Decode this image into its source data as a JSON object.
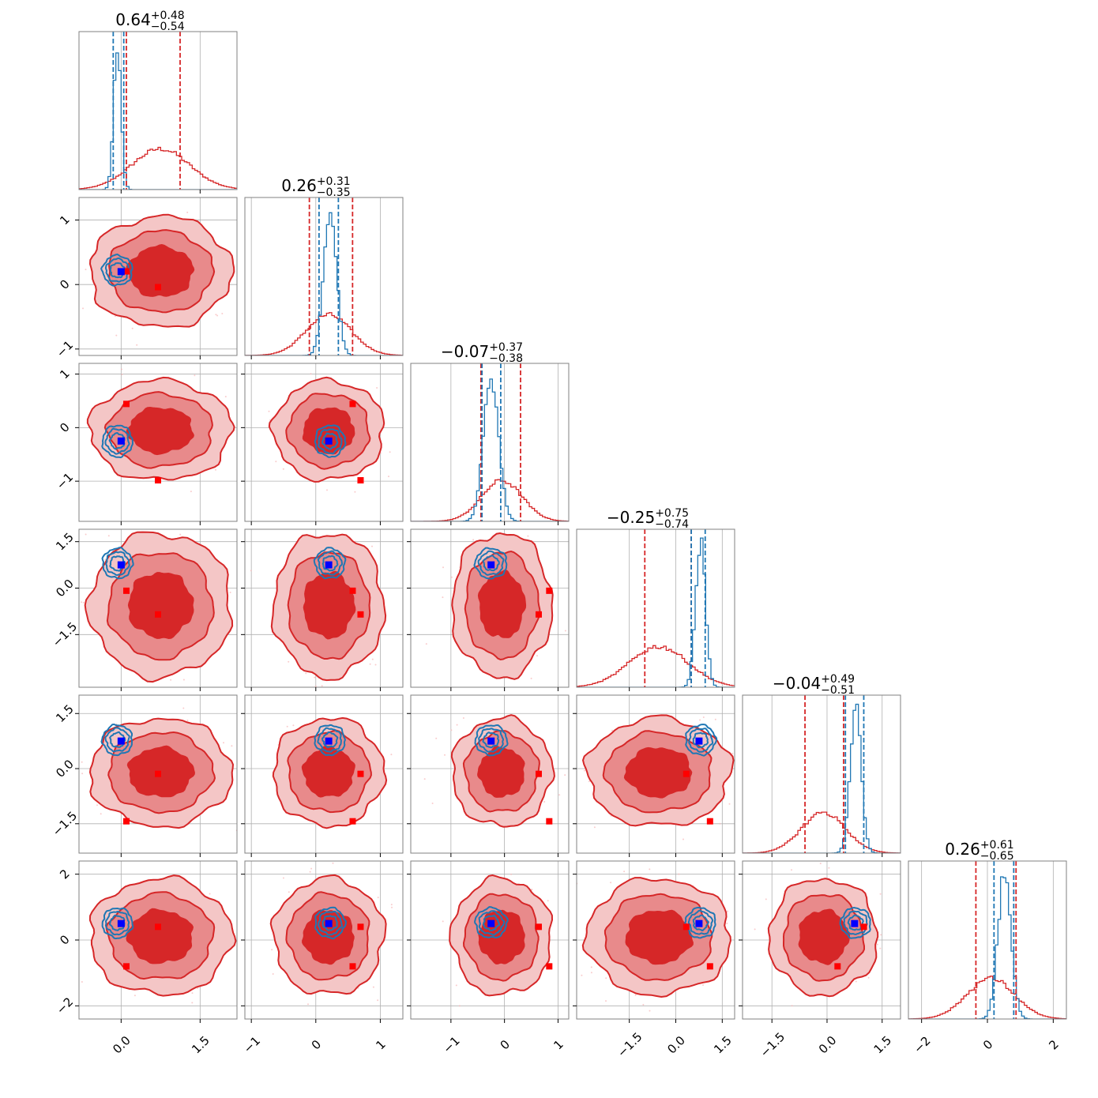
{
  "colors": {
    "red": "#d62728",
    "blue": "#1f77b4",
    "marker_blue": "#0000ff",
    "marker_red": "#ff0000",
    "fill_light": "#f4c6c6",
    "fill_mid": "#e88a8b",
    "grid": "#b0b0b0"
  },
  "chart_data": {
    "type": "corner",
    "n_params": 6,
    "titles": [
      {
        "median": "0.64",
        "plus": "+0.48",
        "minus": "−0.54"
      },
      {
        "median": "0.26",
        "plus": "+0.31",
        "minus": "−0.35"
      },
      {
        "median": "−0.07",
        "plus": "+0.37",
        "minus": "−0.38"
      },
      {
        "median": "−0.25",
        "plus": "+0.75",
        "minus": "−0.74"
      },
      {
        "median": "−0.04",
        "plus": "+0.49",
        "minus": "−0.51"
      },
      {
        "median": "0.26",
        "plus": "+0.61",
        "minus": "−0.65"
      }
    ],
    "ranges": [
      [
        -0.8,
        2.2
      ],
      [
        -1.1,
        1.35
      ],
      [
        -1.75,
        1.2
      ],
      [
        -3.2,
        1.9
      ],
      [
        -2.3,
        2.0
      ],
      [
        -2.4,
        2.4
      ]
    ],
    "ticks": [
      {
        "values": [
          0.0,
          1.5
        ],
        "labels": [
          "0.0",
          "1.5"
        ]
      },
      {
        "values": [
          -1,
          0,
          1
        ],
        "labels": [
          "−1",
          "0",
          "1"
        ]
      },
      {
        "values": [
          -1,
          0,
          1
        ],
        "labels": [
          "−1",
          "0",
          "1"
        ]
      },
      {
        "values": [
          -1.5,
          0.0,
          1.5
        ],
        "labels": [
          "−1.5",
          "0.0",
          "1.5"
        ]
      },
      {
        "values": [
          -1.5,
          0.0,
          1.5
        ],
        "labels": [
          "−1.5",
          "0.0",
          "1.5"
        ]
      },
      {
        "values": [
          -2,
          0,
          2
        ],
        "labels": [
          "−2",
          "0",
          "2"
        ]
      }
    ],
    "blue_truth": [
      0.0,
      0.2,
      -0.25,
      0.75,
      0.75,
      0.5
    ],
    "red_points": [
      [
        0.1,
        -0.1
      ],
      [
        0.7,
        0.25
      ],
      [
        0.85,
        0.45
      ],
      [
        0.65,
        -0.05
      ],
      [
        0.2,
        -1.0
      ],
      [
        0.7,
        -0.5
      ]
    ],
    "red_posterior": {
      "means": [
        0.75,
        0.2,
        -0.05,
        -0.55,
        -0.1,
        0.1
      ],
      "sigmas": [
        0.55,
        0.35,
        0.38,
        0.95,
        0.6,
        0.72
      ],
      "quantile_lines": [
        [
          0.1,
          1.12
        ],
        [
          -0.1,
          0.57
        ],
        [
          -0.44,
          0.3
        ],
        [
          -1.0,
          0.5
        ],
        [
          -0.6,
          0.45
        ],
        [
          -0.35,
          0.87
        ]
      ]
    },
    "blue_posterior": {
      "means": [
        -0.07,
        0.22,
        -0.25,
        0.8,
        0.78,
        0.52
      ],
      "sigmas": [
        0.07,
        0.1,
        0.14,
        0.16,
        0.15,
        0.2
      ],
      "quantile_lines": [
        [
          -0.15,
          0.05
        ],
        [
          0.05,
          0.35
        ],
        [
          -0.42,
          -0.07
        ],
        [
          0.5,
          0.95
        ],
        [
          0.5,
          1.0
        ],
        [
          0.2,
          0.8
        ]
      ]
    }
  }
}
